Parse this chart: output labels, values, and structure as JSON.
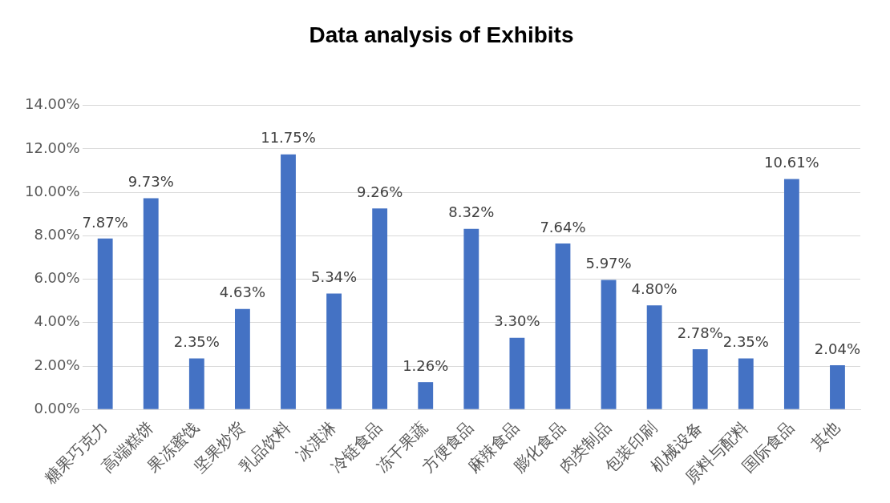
{
  "chart_data": {
    "type": "bar",
    "title": "Data analysis of Exhibits",
    "categories": [
      "糖果巧克力",
      "高端糕饼",
      "果冻蜜饯",
      "坚果炒货",
      "乳品饮料",
      "冰淇淋",
      "冷链食品",
      "冻干果蔬",
      "方便食品",
      "麻辣食品",
      "膨化食品",
      "肉类制品",
      "包装印刷",
      "机械设备",
      "原料与配料",
      "国际食品",
      "其他"
    ],
    "values": [
      7.87,
      9.73,
      2.35,
      4.63,
      11.75,
      5.34,
      9.26,
      1.26,
      8.32,
      3.3,
      7.64,
      5.97,
      4.8,
      2.78,
      2.35,
      10.61,
      2.04
    ],
    "value_labels": [
      "7.87%",
      "9.73%",
      "2.35%",
      "4.63%",
      "11.75%",
      "5.34%",
      "9.26%",
      "1.26%",
      "8.32%",
      "3.30%",
      "7.64%",
      "5.97%",
      "4.80%",
      "2.78%",
      "2.35%",
      "10.61%",
      "2.04%"
    ],
    "color": "#4472c4",
    "ylim": [
      0,
      14
    ],
    "yticks": [
      {
        "value": 0,
        "label": "0.00%"
      },
      {
        "value": 2,
        "label": "2.00%"
      },
      {
        "value": 4,
        "label": "4.00%"
      },
      {
        "value": 6,
        "label": "6.00%"
      },
      {
        "value": 8,
        "label": "8.00%"
      },
      {
        "value": 10,
        "label": "10.00%"
      },
      {
        "value": 12,
        "label": "12.00%"
      },
      {
        "value": 14,
        "label": "14.00%"
      }
    ],
    "grid": "y",
    "legend": false
  }
}
